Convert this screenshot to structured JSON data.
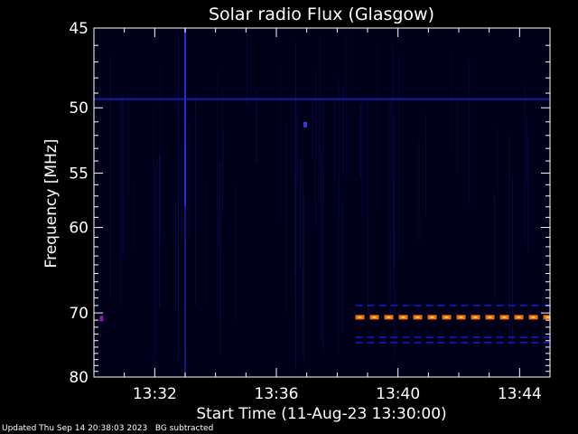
{
  "chart_data": {
    "type": "heatmap",
    "title": "Solar radio Flux (Glasgow)",
    "xlabel": "Start Time (11-Aug-23 13:30:00)",
    "ylabel": "Frequency [MHz]",
    "xlim_minutes": [
      0,
      15
    ],
    "ylim_mhz": [
      45,
      80
    ],
    "y_scale": "reciprocal",
    "x_ticks": [
      {
        "minute": 2,
        "label": "13:32"
      },
      {
        "minute": 6,
        "label": "13:36"
      },
      {
        "minute": 10,
        "label": "13:40"
      },
      {
        "minute": 14,
        "label": "13:44"
      }
    ],
    "y_ticks": [
      {
        "mhz": 45,
        "label": "45"
      },
      {
        "mhz": 50,
        "label": "50"
      },
      {
        "mhz": 55,
        "label": "55"
      },
      {
        "mhz": 60,
        "label": "60"
      },
      {
        "mhz": 70,
        "label": "70"
      },
      {
        "mhz": 80,
        "label": "80"
      }
    ],
    "background_color": "#00001a",
    "features": [
      {
        "kind": "horizontal_band",
        "mhz": 49.4,
        "minute_start": 0,
        "minute_end": 15,
        "color": "#1a1aa8"
      },
      {
        "kind": "vertical_burst",
        "minute": 3.0,
        "mhz_start": 45,
        "mhz_end": 58,
        "color": "#2a2ad0"
      },
      {
        "kind": "spot",
        "minute": 6.95,
        "mhz": 51.2,
        "color": "#3b3bd8"
      },
      {
        "kind": "spot",
        "minute": 0.25,
        "mhz": 70.8,
        "color": "#8a1aa8"
      },
      {
        "kind": "horizontal_band",
        "mhz": 70.6,
        "minute_start": 8.6,
        "minute_end": 15,
        "color": "#ff6a00",
        "dashed": true
      },
      {
        "kind": "horizontal_band",
        "mhz": 69.0,
        "minute_start": 8.6,
        "minute_end": 15,
        "color": "#1515a0",
        "dashed": true
      },
      {
        "kind": "horizontal_band",
        "mhz": 73.5,
        "minute_start": 8.6,
        "minute_end": 15,
        "color": "#1515a0",
        "dashed": true
      },
      {
        "kind": "horizontal_band",
        "mhz": 74.3,
        "minute_start": 8.6,
        "minute_end": 15,
        "color": "#1515a0",
        "dashed": true
      }
    ]
  },
  "footer": {
    "updated": "Updated Thu Sep 14 20:38:03 2023",
    "note": "BG subtracted"
  }
}
